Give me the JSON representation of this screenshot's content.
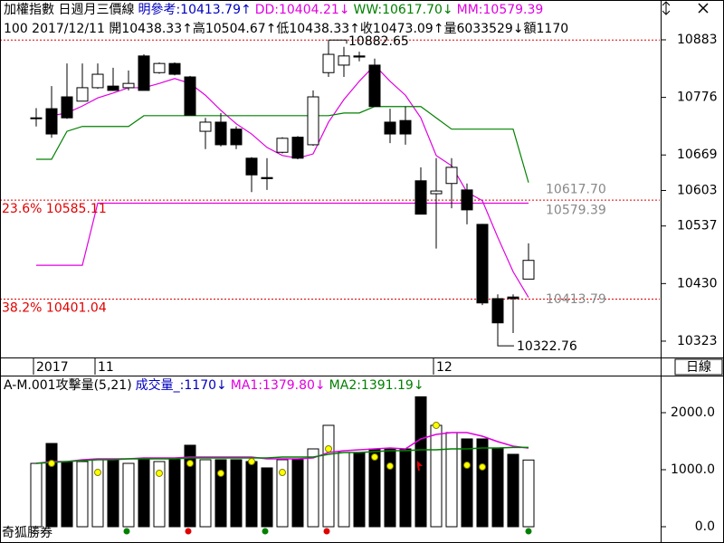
{
  "header": {
    "line1": [
      {
        "text": "加權指數 日週月三價線",
        "color": "#000000"
      },
      {
        "text": "明參考:10413.79↑",
        "color": "#0000c0"
      },
      {
        "text": "DD:10404.21↓",
        "color": "#e000e0"
      },
      {
        "text": "WW:10617.70↓",
        "color": "#008000"
      },
      {
        "text": "MM:10579.39",
        "color": "#e000e0"
      }
    ],
    "line2": "100 2017/12/11 開10438.33↑高10504.67↑低10438.33↑收10473.09↑量6033529↓額1170",
    "period": "日線"
  },
  "volume_header": [
    {
      "text": "A-M.001攻擊量(5,21)",
      "color": "#000000"
    },
    {
      "text": "成交量_:1170↓",
      "color": "#0000c0"
    },
    {
      "text": "MA1:1379.80↓",
      "color": "#e000e0"
    },
    {
      "text": "MA2:1391.19↓",
      "color": "#008000"
    }
  ],
  "footer": "奇狐勝券",
  "chart_data": [
    {
      "type": "candlestick",
      "categories": [
        "2017",
        null,
        null,
        null,
        "11",
        null,
        null,
        null,
        null,
        null,
        null,
        null,
        null,
        null,
        null,
        null,
        null,
        null,
        null,
        null,
        null,
        null,
        null,
        null,
        null,
        null,
        "12",
        null,
        null,
        null,
        null,
        null,
        null
      ],
      "open": [
        10737,
        10755,
        10777,
        10769,
        10794,
        10797,
        10794,
        10853,
        10822,
        10839,
        10814,
        10713,
        10730,
        10717,
        10663,
        10627,
        10674,
        10702,
        10688,
        10822,
        10836,
        10853,
        10836,
        10730,
        10733,
        10621,
        10597,
        10616,
        10604,
        10540,
        10402,
        10405,
        10438.33
      ],
      "high": [
        10756,
        10797,
        10839,
        10839,
        10839,
        10831,
        10826,
        10856,
        10841,
        10841,
        10816,
        10738,
        10747,
        10722,
        10665,
        10663,
        10702,
        10704,
        10789,
        10882.65,
        10870,
        10861,
        10848,
        10755,
        10759,
        10646,
        10663,
        10663,
        10616,
        10541,
        10410,
        10410,
        10504.67
      ],
      "low": [
        10722,
        10701,
        10736,
        10769,
        10792,
        10788,
        10789,
        10789,
        10820,
        10817,
        10743,
        10680,
        10685,
        10680,
        10600,
        10604,
        10672,
        10661,
        10686,
        10814,
        10814,
        10843,
        10759,
        10691,
        10688,
        10559,
        10495,
        10570,
        10540,
        10390,
        10322.76,
        10338,
        10438.33
      ],
      "close": [
        10738,
        10708,
        10738,
        10794,
        10819,
        10789,
        10802,
        10789,
        10839,
        10819,
        10743,
        10730,
        10688,
        10688,
        10632,
        10625,
        10700,
        10663,
        10777,
        10856,
        10853,
        10851,
        10759,
        10708,
        10708,
        10559,
        10602,
        10646,
        10567,
        10394,
        10357,
        10402,
        10473.09
      ],
      "up_color": "#ffffff",
      "down_color": "#000000",
      "lines": [
        {
          "color": "#e000e0",
          "values": [
            null,
            10742,
            10747,
            10760,
            10775,
            10784,
            10794,
            10794,
            10802,
            10811,
            10802,
            10780,
            10752,
            10727,
            10708,
            10683,
            10668,
            10663,
            10671,
            10730,
            10772,
            10806,
            10836,
            10806,
            10780,
            10738,
            10668,
            10649,
            10600,
            10584,
            10516,
            10452,
            10404.21
          ]
        },
        {
          "color": "#008000",
          "values": [
            10661,
            10661,
            10713,
            10722,
            10722,
            10722,
            10722,
            10742,
            10742,
            10742,
            10742,
            10742,
            10742,
            10742,
            10742,
            10742,
            10742,
            10742,
            10742,
            10742,
            10747,
            10747,
            10759,
            10759,
            10759,
            10759,
            10738,
            10717,
            10717,
            10717,
            10717,
            10717,
            10617.7
          ]
        },
        {
          "color": "#e000e0",
          "values": [
            10464,
            10464,
            10464,
            10464,
            10579.39,
            10579.39,
            10579.39,
            10579.39,
            10579.39,
            10579.39,
            10579.39,
            10579.39,
            10579.39,
            10579.39,
            10579.39,
            10579.39,
            10579.39,
            10579.39,
            10579.39,
            10579.39,
            10579.39,
            10579.39,
            10579.39,
            10579.39,
            10579.39,
            10579.39,
            10579.39,
            10579.39,
            10579.39,
            10579.39,
            10579.39,
            10579.39,
            10579.39
          ]
        }
      ],
      "levels": [
        {
          "value": 10882.65,
          "color": "#e00000"
        },
        {
          "value": 10585.11,
          "label": "23.6% 10585.11",
          "color": "#e00000"
        },
        {
          "value": 10401.04,
          "label": "38.2% 10401.04",
          "color": "#e00000"
        }
      ],
      "price_labels": [
        {
          "value": 10617.7,
          "label": "10617.70"
        },
        {
          "value": 10579.39,
          "label": "10579.39"
        },
        {
          "value": 10413.79,
          "label": "10413.79"
        }
      ],
      "ylim": [
        10296,
        10920
      ],
      "yticks": [
        10323,
        10430,
        10537,
        10603,
        10669,
        10776,
        10883
      ]
    },
    {
      "type": "volume",
      "values": [
        1111,
        1460,
        1143,
        1143,
        1175,
        1175,
        1111,
        1175,
        1143,
        1175,
        1429,
        1175,
        1175,
        1175,
        1143,
        1032,
        1175,
        1175,
        1365,
        1778,
        1302,
        1302,
        1365,
        1365,
        1365,
        2302,
        1778,
        1651,
        1540,
        1540,
        1365,
        1270,
        1170
      ],
      "lines": [
        {
          "color": "#e000e0",
          "values": [
            1111,
            1143,
            1143,
            1175,
            1190,
            1190,
            1190,
            1206,
            1206,
            1206,
            1222,
            1222,
            1222,
            1222,
            1222,
            1190,
            1190,
            1190,
            1206,
            1302,
            1333,
            1349,
            1365,
            1381,
            1365,
            1540,
            1619,
            1651,
            1651,
            1587,
            1492,
            1413,
            1379.8
          ]
        },
        {
          "color": "#008000",
          "values": [
            1111,
            1127,
            1143,
            1159,
            1175,
            1175,
            1190,
            1190,
            1190,
            1190,
            1206,
            1206,
            1206,
            1206,
            1206,
            1206,
            1222,
            1222,
            1222,
            1270,
            1302,
            1302,
            1318,
            1333,
            1333,
            1349,
            1349,
            1365,
            1365,
            1381,
            1381,
            1391,
            1391.19
          ]
        }
      ],
      "dots": [
        null,
        1111,
        null,
        null,
        952,
        null,
        null,
        null,
        937,
        null,
        1111,
        null,
        937,
        null,
        1143,
        null,
        952,
        null,
        null,
        1365,
        null,
        null,
        1222,
        1063,
        null,
        null,
        1778,
        null,
        1079,
        1048,
        null,
        null,
        null
      ],
      "dot_color": "#ffff00",
      "ylim": [
        -222,
        2603
      ],
      "yticks": [
        {
          "value": 0,
          "label": "0.0"
        },
        {
          "value": 1000,
          "label": "1000.0"
        },
        {
          "value": 2000,
          "label": "2000.0"
        }
      ]
    }
  ]
}
